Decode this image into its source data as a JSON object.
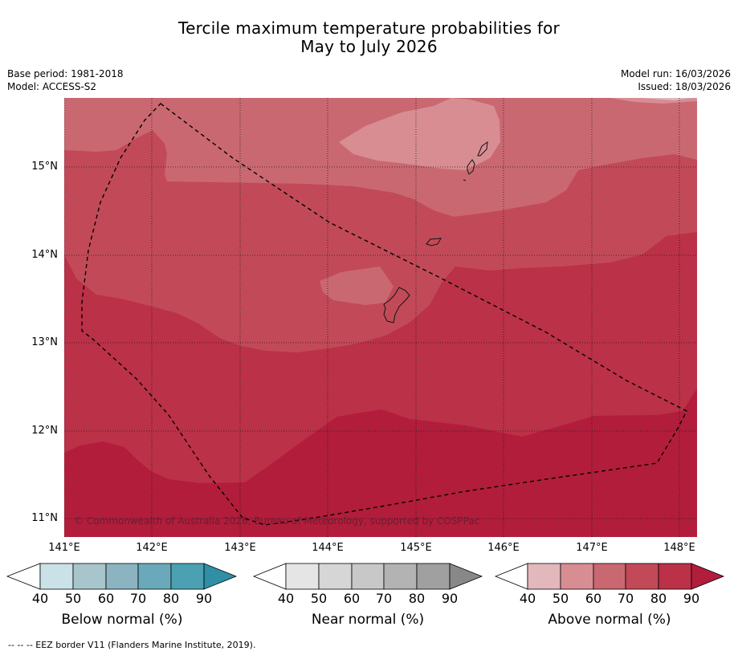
{
  "title_line1": "Tercile maximum temperature probabilities for",
  "title_line2": "May to July 2026",
  "left_meta": {
    "base_period": "Base period: 1981-2018",
    "model": "Model: ACCESS-S2"
  },
  "right_meta": {
    "model_run": "Model run: 16/03/2026",
    "issued": "Issued: 18/03/2026"
  },
  "map": {
    "lat_labels": [
      "15°N",
      "14°N",
      "13°N",
      "12°N",
      "11°N"
    ],
    "lon_labels": [
      "141°E",
      "142°E",
      "143°E",
      "144°E",
      "145°E",
      "146°E",
      "147°E",
      "148°E"
    ],
    "copyright": "© Commonwealth of Australia 2026, Bureau of Meteorology, supported by COSPPac",
    "colors": {
      "above_90": "#b21d3b",
      "above_80": "#bb3148",
      "above_70": "#c24a58",
      "above_60": "#ca6871",
      "above_50": "#d88d93",
      "above_40": "#e2b8bd"
    }
  },
  "colorbars": {
    "ticks": [
      "40",
      "50",
      "60",
      "70",
      "80",
      "90"
    ],
    "below": {
      "title": "Below normal (%)",
      "colors": [
        "#c9e1e7",
        "#a8c5cb",
        "#8bb4c0",
        "#6aa9b9",
        "#4ba1b2",
        "#2e8fa5"
      ]
    },
    "near": {
      "title": "Near normal (%)",
      "colors": [
        "#e5e5e5",
        "#d6d6d6",
        "#c8c8c8",
        "#b3b3b3",
        "#a0a0a0",
        "#888888"
      ]
    },
    "above": {
      "title": "Above normal (%)",
      "colors": [
        "#e2b8bd",
        "#d88d93",
        "#ca6871",
        "#c24a58",
        "#bb3148",
        "#b21d3b"
      ]
    }
  },
  "footnote": "--  --  -- EEZ border V11 (Flanders Marine Institute, 2019)."
}
